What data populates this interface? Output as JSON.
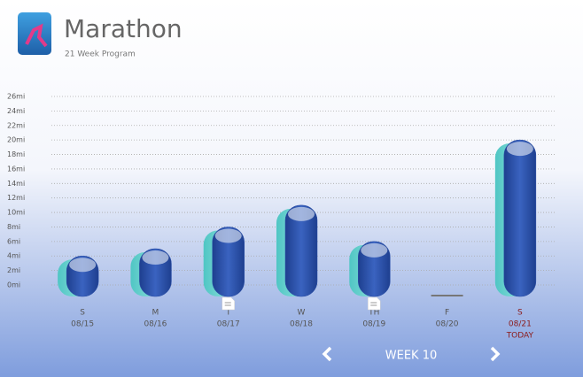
{
  "header": {
    "title": "Marathon",
    "subtitle": "21 Week Program"
  },
  "chart_data": {
    "type": "bar",
    "categories": [
      "S",
      "M",
      "T",
      "W",
      "TH",
      "F",
      "S"
    ],
    "dates": [
      "08/15",
      "08/16",
      "08/17",
      "08/18",
      "08/19",
      "08/20",
      "08/21"
    ],
    "values": [
      4,
      5,
      8,
      11,
      6,
      0,
      20
    ],
    "notes": [
      false,
      false,
      true,
      false,
      true,
      false,
      false
    ],
    "today_index": 6,
    "today_label": "TODAY",
    "color": "#2b4fa8",
    "ylim": [
      0,
      26
    ],
    "yticks": [
      {
        "value": 0,
        "label": "0mi"
      },
      {
        "value": 2,
        "label": "2mi"
      },
      {
        "value": 4,
        "label": "4mi"
      },
      {
        "value": 6,
        "label": "6mi"
      },
      {
        "value": 8,
        "label": "8mi"
      },
      {
        "value": 10,
        "label": "10mi"
      },
      {
        "value": 12,
        "label": "12mi"
      },
      {
        "value": 14,
        "label": "14mi"
      },
      {
        "value": 16,
        "label": "16mi"
      },
      {
        "value": 18,
        "label": "18mi"
      },
      {
        "value": 20,
        "label": "20mi"
      },
      {
        "value": 22,
        "label": "22mi"
      },
      {
        "value": 24,
        "label": "24mi"
      },
      {
        "value": 26,
        "label": "26mi"
      }
    ],
    "grid": true
  },
  "nav": {
    "week": "WEEK 10"
  }
}
